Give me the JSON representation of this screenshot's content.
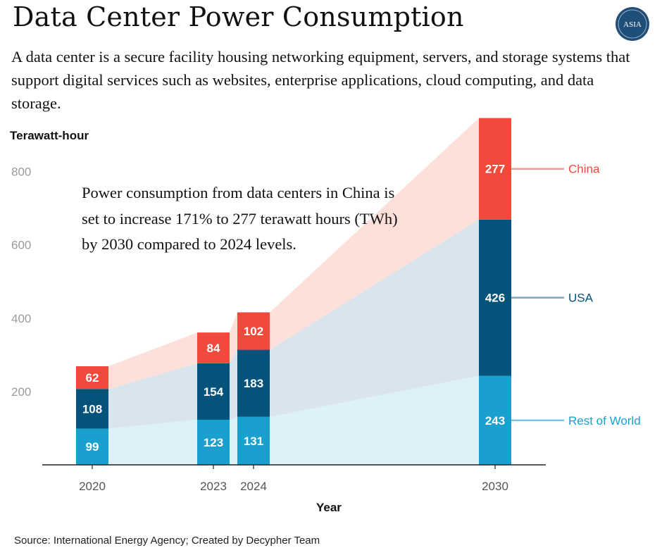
{
  "title": "Data Center Power Consumption",
  "subtitle": "A data center is a secure facility housing networking equipment, servers, and storage systems that support digital services such as websites, enterprise applications, cloud computing, and data storage.",
  "logo_text": "ASIA",
  "annotation": "Power consumption from data centers in China is set to increase 171% to 277 terawatt hours (TWh) by 2030 compared to 2024 levels.",
  "source": "Source: International Energy Agency; Created by Decypher Team",
  "colors": {
    "china": "#ef4a3c",
    "usa": "#05527a",
    "rest_of_world": "#1aa0cf",
    "china_band": "#fde0da",
    "usa_band": "#d9e4ec",
    "row_band": "#ddf1f8",
    "logo": "#1f4e79"
  },
  "chart_data": {
    "type": "bar",
    "stacked": true,
    "categories": [
      "2020",
      "2023",
      "2024",
      "2030"
    ],
    "series": [
      {
        "name": "Rest of World",
        "values": [
          99,
          123,
          131,
          243
        ]
      },
      {
        "name": "USA",
        "values": [
          108,
          154,
          183,
          426
        ]
      },
      {
        "name": "China",
        "values": [
          62,
          84,
          102,
          277
        ]
      }
    ],
    "ylabel": "Terawatt-hour",
    "xlabel": "Year",
    "yticks": [
      200,
      400,
      600,
      800
    ],
    "ylim": [
      0,
      950
    ],
    "grid": false,
    "legend": "right"
  }
}
